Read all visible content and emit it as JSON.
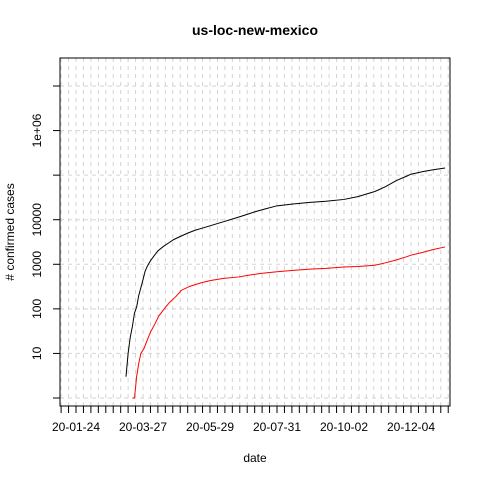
{
  "chart_data": {
    "type": "line",
    "title": "us-loc-new-mexico",
    "xlabel": "date",
    "ylabel": "# confirmed cases",
    "y_scale": "log",
    "ylim": [
      1,
      10000000
    ],
    "xlim": [
      "2020-01-10",
      "2021-01-10"
    ],
    "grid": true,
    "x_ticks": [
      "2020-01-24",
      "2020-03-27",
      "2020-05-29",
      "2020-07-31",
      "2020-10-02",
      "2020-12-04"
    ],
    "x_tick_labels": [
      "20-01-24",
      "20-03-27",
      "20-05-29",
      "20-07-31",
      "20-10-02",
      "20-12-04"
    ],
    "y_ticks": [
      10,
      100,
      1000,
      10000,
      1000000
    ],
    "y_tick_labels": [
      "10",
      "100",
      "1000",
      "10000",
      "1e+06"
    ],
    "series": [
      {
        "color": "#000000",
        "points": [
          [
            "2020-03-11",
            3
          ],
          [
            "2020-03-13",
            10
          ],
          [
            "2020-03-15",
            23
          ],
          [
            "2020-03-17",
            40
          ],
          [
            "2020-03-19",
            80
          ],
          [
            "2020-03-21",
            110
          ],
          [
            "2020-03-23",
            200
          ],
          [
            "2020-03-25",
            300
          ],
          [
            "2020-03-27",
            450
          ],
          [
            "2020-03-29",
            700
          ],
          [
            "2020-03-31",
            900
          ],
          [
            "2020-04-03",
            1200
          ],
          [
            "2020-04-06",
            1500
          ],
          [
            "2020-04-10",
            2000
          ],
          [
            "2020-04-15",
            2500
          ],
          [
            "2020-04-20",
            3000
          ],
          [
            "2020-04-25",
            3600
          ],
          [
            "2020-05-01",
            4200
          ],
          [
            "2020-05-08",
            5000
          ],
          [
            "2020-05-15",
            5800
          ],
          [
            "2020-05-22",
            6500
          ],
          [
            "2020-05-29",
            7300
          ],
          [
            "2020-06-05",
            8200
          ],
          [
            "2020-06-12",
            9200
          ],
          [
            "2020-06-20",
            10500
          ],
          [
            "2020-06-30",
            12500
          ],
          [
            "2020-07-10",
            15000
          ],
          [
            "2020-07-20",
            17500
          ],
          [
            "2020-07-31",
            20500
          ],
          [
            "2020-08-15",
            22500
          ],
          [
            "2020-08-31",
            24500
          ],
          [
            "2020-09-15",
            26000
          ],
          [
            "2020-10-02",
            28500
          ],
          [
            "2020-10-15",
            33000
          ],
          [
            "2020-10-31",
            43000
          ],
          [
            "2020-11-10",
            55000
          ],
          [
            "2020-11-20",
            75000
          ],
          [
            "2020-11-30",
            95000
          ],
          [
            "2020-12-04",
            105000
          ],
          [
            "2020-12-15",
            120000
          ],
          [
            "2020-12-25",
            132000
          ],
          [
            "2021-01-05",
            145000
          ]
        ]
      },
      {
        "color": "#ff0000",
        "points": [
          [
            "2020-03-17",
            1
          ],
          [
            "2020-03-19",
            1
          ],
          [
            "2020-03-21",
            3
          ],
          [
            "2020-03-23",
            6
          ],
          [
            "2020-03-25",
            10
          ],
          [
            "2020-03-28",
            13
          ],
          [
            "2020-03-31",
            20
          ],
          [
            "2020-04-03",
            30
          ],
          [
            "2020-04-07",
            45
          ],
          [
            "2020-04-11",
            70
          ],
          [
            "2020-04-16",
            100
          ],
          [
            "2020-04-21",
            140
          ],
          [
            "2020-04-27",
            190
          ],
          [
            "2020-05-02",
            260
          ],
          [
            "2020-05-10",
            320
          ],
          [
            "2020-05-20",
            380
          ],
          [
            "2020-05-29",
            430
          ],
          [
            "2020-06-10",
            480
          ],
          [
            "2020-06-25",
            520
          ],
          [
            "2020-07-05",
            570
          ],
          [
            "2020-07-15",
            620
          ],
          [
            "2020-07-31",
            680
          ],
          [
            "2020-08-15",
            730
          ],
          [
            "2020-08-31",
            780
          ],
          [
            "2020-09-15",
            810
          ],
          [
            "2020-10-02",
            870
          ],
          [
            "2020-10-15",
            890
          ],
          [
            "2020-10-31",
            950
          ],
          [
            "2020-11-10",
            1080
          ],
          [
            "2020-11-20",
            1250
          ],
          [
            "2020-11-30",
            1480
          ],
          [
            "2020-12-04",
            1600
          ],
          [
            "2020-12-15",
            1850
          ],
          [
            "2020-12-25",
            2150
          ],
          [
            "2021-01-05",
            2450
          ]
        ]
      }
    ]
  }
}
